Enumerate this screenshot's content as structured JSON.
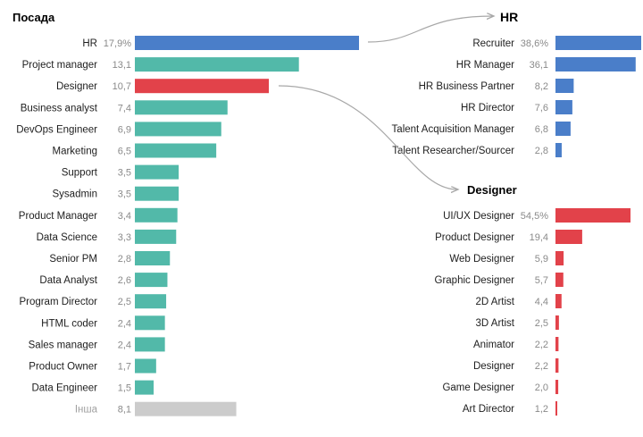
{
  "chart_data": [
    {
      "type": "bar",
      "orientation": "horizontal",
      "title": "Посада",
      "categories": [
        "HR",
        "Project manager",
        "Designer",
        "Business analyst",
        "DevOps Engineer",
        "Marketing",
        "Support",
        "Sysadmin",
        "Product Manager",
        "Data Science",
        "Senior PM",
        "Data Analyst",
        "Program Director",
        "HTML coder",
        "Sales manager",
        "Product Owner",
        "Data Engineer",
        "Інша"
      ],
      "value_labels": [
        "17,9%",
        "13,1",
        "10,7",
        "7,4",
        "6,9",
        "6,5",
        "3,5",
        "3,5",
        "3,4",
        "3,3",
        "2,8",
        "2,6",
        "2,5",
        "2,4",
        "2,4",
        "1,7",
        "1,5",
        "8,1"
      ],
      "values": [
        17.9,
        13.1,
        10.7,
        7.4,
        6.9,
        6.5,
        3.5,
        3.5,
        3.4,
        3.3,
        2.8,
        2.6,
        2.5,
        2.4,
        2.4,
        1.7,
        1.5,
        8.1
      ],
      "bar_colors": [
        "#4a7ec9",
        "#52b9a9",
        "#e2424a",
        "#52b9a9",
        "#52b9a9",
        "#52b9a9",
        "#52b9a9",
        "#52b9a9",
        "#52b9a9",
        "#52b9a9",
        "#52b9a9",
        "#52b9a9",
        "#52b9a9",
        "#52b9a9",
        "#52b9a9",
        "#52b9a9",
        "#52b9a9",
        "#cccccc"
      ],
      "muted_label_index": 17,
      "xlim": [
        0,
        17.9
      ],
      "gridlines": false
    },
    {
      "type": "bar",
      "orientation": "horizontal",
      "title": "HR",
      "categories": [
        "Recruiter",
        "HR Manager",
        "HR Business Partner",
        "HR Director",
        "Talent Acquisition Manager",
        "Talent Researcher/Sourcer"
      ],
      "value_labels": [
        "38,6%",
        "36,1",
        "8,2",
        "7,6",
        "6,8",
        "2,8"
      ],
      "values": [
        38.6,
        36.1,
        8.2,
        7.6,
        6.8,
        2.8
      ],
      "color": "#4a7ec9",
      "xlim": [
        0,
        38.6
      ],
      "gridlines": false
    },
    {
      "type": "bar",
      "orientation": "horizontal",
      "title": "Designer",
      "categories": [
        "UI/UX Designer",
        "Product Designer",
        "Web Designer",
        "Graphic Designer",
        "2D Artist",
        "3D Artist",
        "Animator",
        "Designer",
        "Game Designer",
        "Art Director"
      ],
      "value_labels": [
        "54,5%",
        "19,4",
        "5,9",
        "5,7",
        "4,4",
        "2,5",
        "2,2",
        "2,2",
        "2,0",
        "1,2"
      ],
      "values": [
        54.5,
        19.4,
        5.9,
        5.7,
        4.4,
        2.5,
        2.2,
        2.2,
        2.0,
        1.2
      ],
      "color": "#e2424a",
      "xlim": [
        0,
        54.5
      ],
      "gridlines": false
    }
  ],
  "colors": {
    "connector": "#a8a8a8",
    "label": "#1e1e1e",
    "value": "#8a8a8a"
  }
}
